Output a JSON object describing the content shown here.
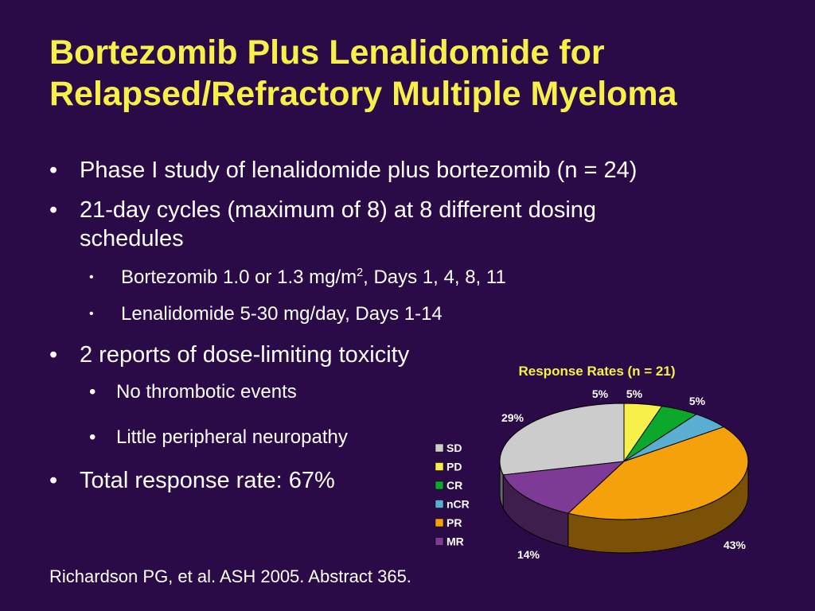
{
  "slide": {
    "title_line1": "Bortezomib Plus Lenalidomide for",
    "title_line2": "Relapsed/Refractory Multiple Myeloma",
    "bullet_glyph": "•",
    "bullets": {
      "b1": "Phase I study of lenalidomide plus bortezomib (n = 24)",
      "b2_line1": "21-day cycles (maximum of 8) at 8 different dosing",
      "b2_line2": "schedules",
      "b2_sub1_pre": "Bortezomib 1.0 or 1.3 mg/m",
      "b2_sub1_sup": "2",
      "b2_sub1_post": ", Days 1, 4, 8, 11",
      "b2_sub2": "Lenalidomide 5-30 mg/day, Days 1-14",
      "b3": "2 reports of dose-limiting toxicity",
      "b3_sub1": "No thrombotic events",
      "b3_sub2": "Little peripheral neuropathy",
      "b4": "Total response rate: 67%"
    },
    "footer": "Richardson PG, et al. ASH 2005. Abstract 365."
  },
  "chart_data": {
    "type": "pie",
    "title": "Response Rates (n = 21)",
    "title_color": "#f7ef4a",
    "legend_position": "left",
    "slices": [
      {
        "name": "SD",
        "value": 29,
        "label": "29%",
        "color": "#cccccc"
      },
      {
        "name": "PD",
        "value": 5,
        "label": "5%",
        "color": "#f7ef4a"
      },
      {
        "name": "CR",
        "value": 5,
        "label": "5%",
        "color": "#0ba82c"
      },
      {
        "name": "nCR",
        "value": 5,
        "label": "5%",
        "color": "#5aaed2"
      },
      {
        "name": "PR",
        "value": 43,
        "label": "43%",
        "color": "#f4a10c"
      },
      {
        "name": "MR",
        "value": 14,
        "label": "14%",
        "color": "#7d3a97"
      }
    ]
  }
}
